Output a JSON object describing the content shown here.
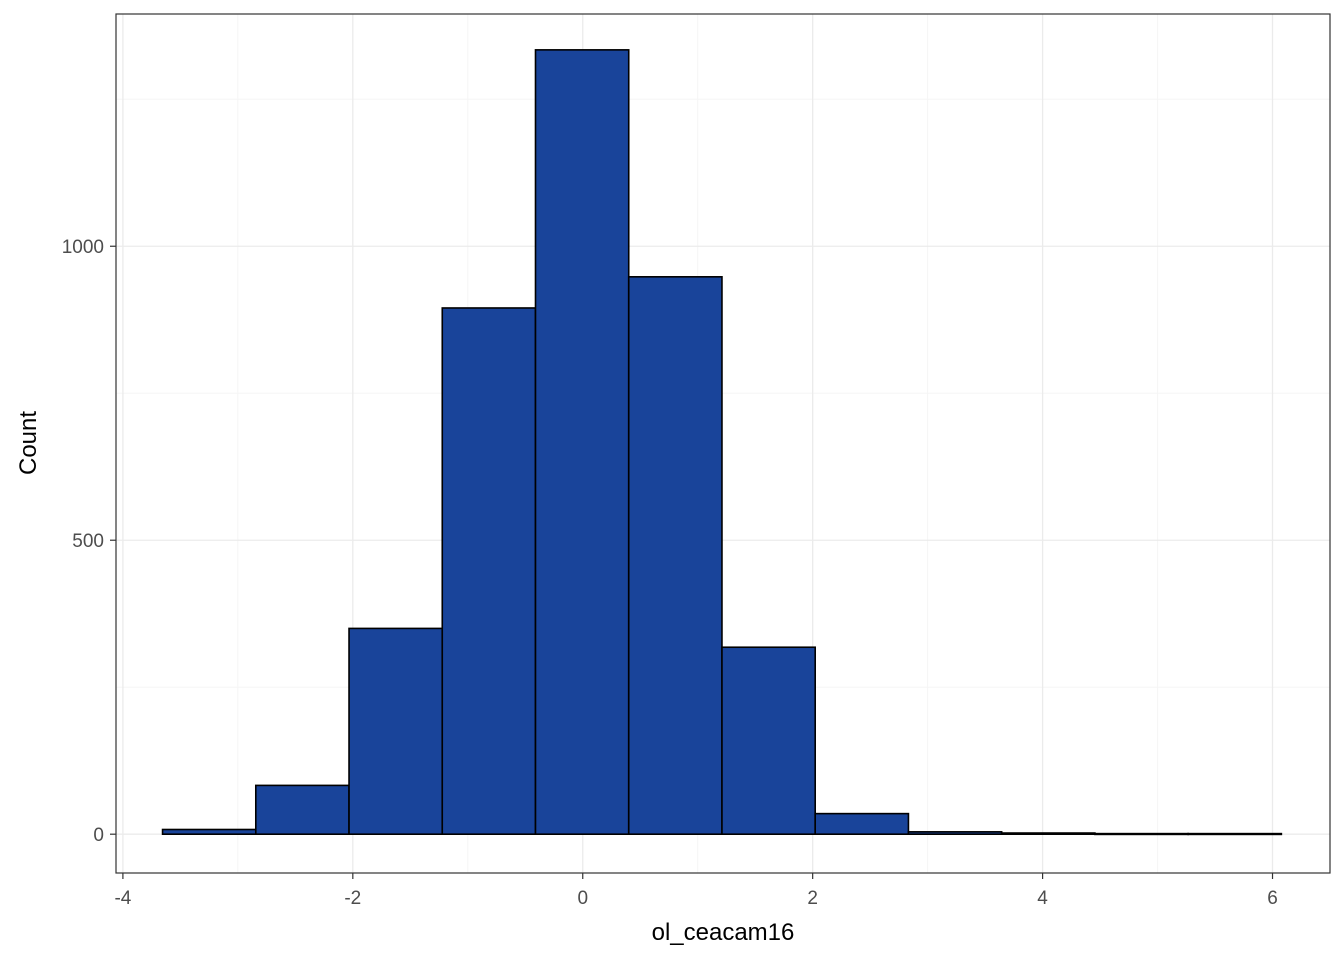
{
  "chart_data": {
    "type": "bar",
    "subtype": "histogram",
    "title": "",
    "xlabel": "ol_ceacam16",
    "ylabel": "Count",
    "xlim": [
      -4.06,
      6.5
    ],
    "ylim": [
      -66,
      1395
    ],
    "x_ticks": [
      -4,
      -2,
      0,
      2,
      4,
      6
    ],
    "x_tick_labels": [
      "-4",
      "-2",
      "0",
      "2",
      "4",
      "6"
    ],
    "y_ticks": [
      0,
      500,
      1000
    ],
    "y_tick_labels": [
      "0",
      "500",
      "1000"
    ],
    "grid": true,
    "legend": "none",
    "colors": {
      "bar_fill": "#19449a",
      "bar_stroke": "#000000",
      "grid_major": "#ebebeb",
      "grid_minor": "#f5f5f5",
      "panel_border": "#333333"
    },
    "bin_edges": [
      -3.655,
      -2.844,
      -2.033,
      -1.222,
      -0.411,
      0.4,
      1.211,
      2.022,
      2.833,
      3.644,
      4.455,
      5.266,
      6.077
    ],
    "values": [
      8,
      83,
      350,
      895,
      1334,
      948,
      318,
      35,
      4,
      2,
      1,
      1
    ]
  }
}
